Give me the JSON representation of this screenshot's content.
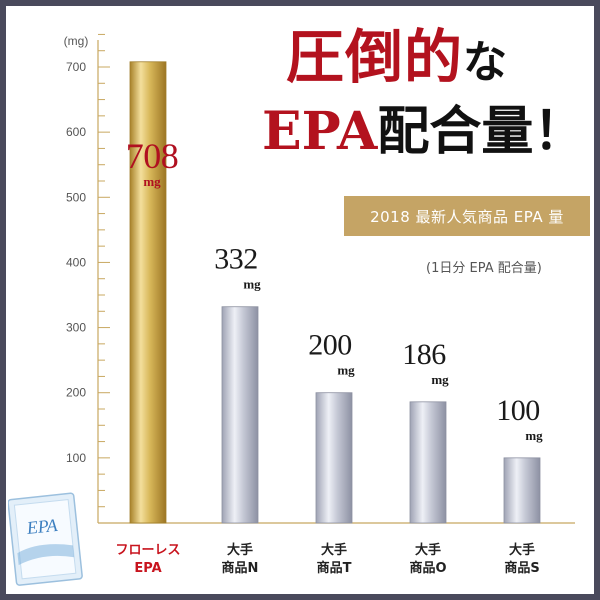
{
  "headline": {
    "line1_main": "圧倒的",
    "line1_tail": "な",
    "line2_main": "EPA",
    "line2_tail": "配合量！"
  },
  "subtitle": "2018 最新人気商品 EPA 量",
  "note": "(1日分 EPA 配合量)",
  "product_image": {
    "label": "EPA"
  },
  "colors": {
    "accent_red": "#b3121e",
    "gold_bar": "#d2b24a",
    "silver_bar": "#b8bccb",
    "subtitle_box": "#c5a465",
    "frame": "#4a4a5c"
  },
  "chart_data": {
    "type": "bar",
    "unit": "(mg)",
    "ylim": [
      0,
      780
    ],
    "yticks": [
      100,
      200,
      300,
      400,
      500,
      600,
      700
    ],
    "categories": [
      [
        "フローレス",
        "EPA"
      ],
      [
        "大手",
        "商品N"
      ],
      [
        "大手",
        "商品T"
      ],
      [
        "大手",
        "商品O"
      ],
      [
        "大手",
        "商品S"
      ]
    ],
    "values": [
      708,
      332,
      200,
      186,
      100
    ],
    "value_labels": [
      "708",
      "332",
      "200",
      "186",
      "100"
    ],
    "value_unit": "mg",
    "highlight_index": 0
  }
}
